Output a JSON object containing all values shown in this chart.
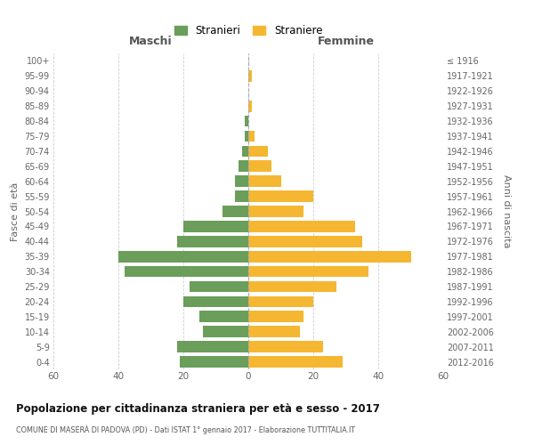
{
  "age_groups": [
    "0-4",
    "5-9",
    "10-14",
    "15-19",
    "20-24",
    "25-29",
    "30-34",
    "35-39",
    "40-44",
    "45-49",
    "50-54",
    "55-59",
    "60-64",
    "65-69",
    "70-74",
    "75-79",
    "80-84",
    "85-89",
    "90-94",
    "95-99",
    "100+"
  ],
  "birth_years": [
    "2012-2016",
    "2007-2011",
    "2002-2006",
    "1997-2001",
    "1992-1996",
    "1987-1991",
    "1982-1986",
    "1977-1981",
    "1972-1976",
    "1967-1971",
    "1962-1966",
    "1957-1961",
    "1952-1956",
    "1947-1951",
    "1942-1946",
    "1937-1941",
    "1932-1936",
    "1927-1931",
    "1922-1926",
    "1917-1921",
    "≤ 1916"
  ],
  "maschi": [
    21,
    22,
    14,
    15,
    20,
    18,
    38,
    40,
    22,
    20,
    8,
    4,
    4,
    3,
    2,
    1,
    1,
    0,
    0,
    0,
    0
  ],
  "femmine": [
    29,
    23,
    16,
    17,
    20,
    27,
    37,
    50,
    35,
    33,
    17,
    20,
    10,
    7,
    6,
    2,
    0,
    1,
    0,
    1,
    0
  ],
  "maschi_color": "#6a9e5a",
  "femmine_color": "#f5b731",
  "title": "Popolazione per cittadinanza straniera per età e sesso - 2017",
  "subtitle": "COMUNE DI MASERÀ DI PADOVA (PD) - Dati ISTAT 1° gennaio 2017 - Elaborazione TUTTITALIA.IT",
  "xlabel_left": "Maschi",
  "xlabel_right": "Femmine",
  "ylabel_left": "Fasce di età",
  "ylabel_right": "Anni di nascita",
  "legend_maschi": "Stranieri",
  "legend_femmine": "Straniere",
  "xlim": 60,
  "background_color": "#ffffff",
  "grid_color": "#cccccc",
  "bar_height": 0.75
}
